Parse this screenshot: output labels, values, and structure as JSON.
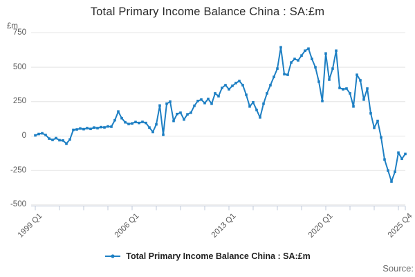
{
  "title": "Total Primary Income Balance China : SA:£m",
  "y_axis": {
    "unit": "£m",
    "ticks": [
      750,
      500,
      250,
      0,
      -250,
      -500
    ]
  },
  "x_axis": {
    "labeled_ticks": [
      {
        "label": "1999 Q1",
        "index": 0
      },
      {
        "label": "2006 Q1",
        "index": 28
      },
      {
        "label": "2013 Q1",
        "index": 56
      },
      {
        "label": "2020 Q1",
        "index": 84
      },
      {
        "label": "2025 Q4",
        "index": 107
      }
    ]
  },
  "legend": {
    "label": "Total Primary Income Balance China : SA:£m"
  },
  "source": {
    "label": "Source:"
  },
  "colors": {
    "line": "#1d7fc3",
    "grid": "#e3e3e3",
    "axis": "#bfc9da",
    "text": "#595959"
  },
  "chart_data": {
    "type": "line",
    "title": "Total Primary Income Balance China : SA:£m",
    "ylabel": "£m",
    "xlabel": "",
    "ylim": [
      -500,
      750
    ],
    "grid": "horizontal",
    "legend_position": "bottom-center",
    "x_start": "1999 Q1",
    "x_end": "2025 Q4",
    "frequency": "quarterly",
    "series": [
      {
        "name": "Total Primary Income Balance China : SA:£m",
        "values": [
          5,
          15,
          20,
          8,
          -18,
          -28,
          -15,
          -30,
          -32,
          -55,
          -25,
          45,
          48,
          55,
          50,
          58,
          52,
          62,
          58,
          65,
          63,
          70,
          68,
          115,
          178,
          130,
          100,
          88,
          92,
          102,
          95,
          103,
          95,
          62,
          30,
          85,
          222,
          10,
          235,
          250,
          110,
          160,
          170,
          120,
          158,
          170,
          220,
          255,
          265,
          240,
          270,
          235,
          310,
          290,
          350,
          370,
          340,
          365,
          385,
          400,
          370,
          300,
          215,
          245,
          190,
          135,
          235,
          310,
          370,
          430,
          490,
          645,
          450,
          445,
          535,
          560,
          550,
          585,
          620,
          635,
          560,
          500,
          395,
          255,
          600,
          410,
          490,
          620,
          350,
          340,
          345,
          310,
          215,
          445,
          405,
          265,
          345,
          165,
          60,
          110,
          -10,
          -170,
          -250,
          -330,
          -260,
          -120,
          -165,
          -130
        ]
      }
    ]
  }
}
